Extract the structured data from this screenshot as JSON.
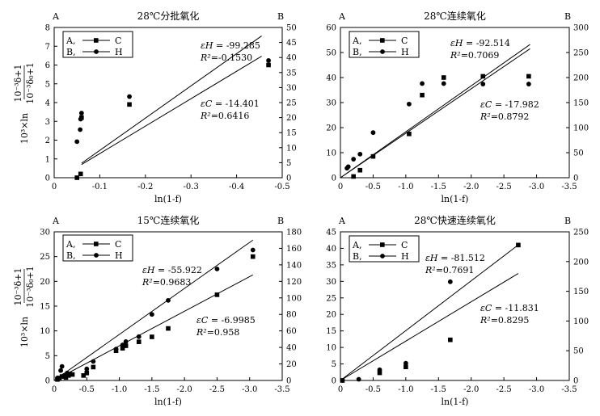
{
  "figure": {
    "ylabel_text_left": "10³×ln",
    "ylabel_frac_numerator": "10⁻³δ+1",
    "ylabel_frac_denominator": "10⁻³δ₀+1"
  },
  "chart_data": [
    {
      "type": "scatter",
      "title": "28℃分批氧化",
      "left_axis_label": "A",
      "right_axis_label": "B",
      "xlabel": "ln(1-f)",
      "x_range": [
        0,
        -0.5
      ],
      "x_ticks": [
        0,
        -0.1,
        -0.2,
        -0.3,
        -0.4,
        -0.5
      ],
      "x_tick_labels": [
        "0",
        "-0.1",
        "-0.2",
        "-0.3",
        "-0.4",
        "-0.5"
      ],
      "left_range": [
        0,
        8
      ],
      "left_ticks": [
        0,
        1,
        2,
        3,
        4,
        5,
        6,
        7,
        8
      ],
      "right_range": [
        0,
        50
      ],
      "right_ticks": [
        0,
        5,
        10,
        15,
        20,
        25,
        30,
        35,
        40,
        45,
        50
      ],
      "legend": [
        {
          "axis": "A",
          "symbol": "square",
          "label": "C",
          "prefix": "A,"
        },
        {
          "axis": "B",
          "symbol": "circle",
          "label": "H",
          "prefix": "B,"
        }
      ],
      "series": [
        {
          "name": "C",
          "axis": "left",
          "marker": "square",
          "x": [
            -0.05,
            -0.058,
            -0.06,
            -0.165,
            -0.47
          ],
          "y": [
            0.0,
            0.2,
            3.2,
            3.9,
            6.0
          ]
        },
        {
          "name": "H",
          "axis": "right",
          "marker": "circle",
          "x": [
            -0.05,
            -0.057,
            -0.058,
            -0.06,
            -0.165,
            -0.47
          ],
          "y": [
            12,
            16,
            19.5,
            21.5,
            27,
            39
          ]
        }
      ],
      "fits": [
        {
          "name": "H fit",
          "axis": "right",
          "x": [
            -0.06,
            -0.455
          ],
          "y": [
            4.8,
            47.2
          ]
        },
        {
          "name": "C fit",
          "axis": "left",
          "x": [
            -0.06,
            -0.455
          ],
          "y": [
            0.7,
            6.47
          ]
        }
      ],
      "annotations": [
        {
          "series": "H",
          "eps_symbol": "εH",
          "eps_value": "-99.285",
          "r2_label": "R²",
          "r2_value": "-0.1530"
        },
        {
          "series": "C",
          "eps_symbol": "εC",
          "eps_value": "-14.401",
          "r2_label": "R²",
          "r2_value": "0.6416"
        }
      ]
    },
    {
      "type": "scatter",
      "title": "28℃连续氧化",
      "left_axis_label": "A",
      "right_axis_label": "B",
      "xlabel": "ln(1-f)",
      "x_range": [
        0,
        -3.5
      ],
      "x_ticks": [
        0,
        -0.5,
        -1.0,
        -1.5,
        -2.0,
        -2.5,
        -3.0,
        -3.5
      ],
      "x_tick_labels": [
        "0",
        "-0.5",
        "-1.0",
        "-1.5",
        "-2.0",
        "-2.5",
        "-3.0",
        "-3.5"
      ],
      "left_range": [
        0,
        60
      ],
      "left_ticks": [
        0,
        10,
        20,
        30,
        40,
        50,
        60
      ],
      "right_range": [
        0,
        300
      ],
      "right_ticks": [
        0,
        50,
        100,
        150,
        200,
        250,
        300
      ],
      "legend": [
        {
          "axis": "A",
          "symbol": "square",
          "label": "C",
          "prefix": "A,"
        },
        {
          "axis": "B",
          "symbol": "circle",
          "label": "H",
          "prefix": "B,"
        }
      ],
      "series": [
        {
          "name": "C",
          "axis": "left",
          "marker": "square",
          "x": [
            -0.2,
            -0.3,
            -0.5,
            -1.05,
            -1.25,
            -1.58,
            -2.18,
            -2.88
          ],
          "y": [
            0.5,
            3,
            8.5,
            17.5,
            33,
            40,
            40.5,
            40.5
          ]
        },
        {
          "name": "H",
          "axis": "right",
          "marker": "circle",
          "x": [
            -0.1,
            -0.12,
            -0.2,
            -0.3,
            -0.5,
            -1.05,
            -1.25,
            -1.58,
            -2.18,
            -2.88
          ],
          "y": [
            19,
            22,
            37,
            47,
            90,
            147,
            188,
            188,
            187,
            187
          ]
        }
      ],
      "fits": [
        {
          "name": "H fit",
          "axis": "right",
          "x": [
            0.0,
            -2.9
          ],
          "y": [
            0,
            266
          ]
        },
        {
          "name": "C fit",
          "axis": "left",
          "x": [
            0.0,
            -2.9
          ],
          "y": [
            0,
            51.5
          ]
        }
      ],
      "annotations": [
        {
          "series": "H",
          "eps_symbol": "εH",
          "eps_value": "-92.514",
          "r2_label": "R²",
          "r2_value": "0.7069"
        },
        {
          "series": "C",
          "eps_symbol": "εC",
          "eps_value": "-17.982",
          "r2_label": "R²",
          "r2_value": "0.8792"
        }
      ]
    },
    {
      "type": "scatter",
      "title": "15℃连续氧化",
      "left_axis_label": "A",
      "right_axis_label": "B",
      "xlabel": "ln(1-f)",
      "x_range": [
        0,
        -3.5
      ],
      "x_ticks": [
        0,
        -0.5,
        -1.0,
        -1.5,
        -2.0,
        -2.5,
        -3.0,
        -3.5
      ],
      "x_tick_labels": [
        "0",
        "-0.5",
        "-1.0",
        "-1.5",
        "-2.0",
        "-2.5",
        "-3.0",
        "-3.5"
      ],
      "left_range": [
        0,
        30
      ],
      "left_ticks": [
        0,
        5,
        10,
        15,
        20,
        25,
        30
      ],
      "right_range": [
        0,
        180
      ],
      "right_ticks": [
        0,
        20,
        40,
        60,
        80,
        100,
        120,
        140,
        160,
        180
      ],
      "legend": [
        {
          "axis": "A",
          "symbol": "square",
          "label": "C",
          "prefix": "A,"
        },
        {
          "axis": "B",
          "symbol": "circle",
          "label": "H",
          "prefix": "B,"
        }
      ],
      "series": [
        {
          "name": "C",
          "axis": "left",
          "marker": "square",
          "x": [
            -0.05,
            -0.08,
            -0.12,
            -0.18,
            -0.22,
            -0.28,
            -0.45,
            -0.5,
            -0.6,
            -0.95,
            -1.05,
            -1.1,
            -1.3,
            -1.5,
            -1.75,
            -2.5,
            -3.05
          ],
          "y": [
            0.2,
            0.5,
            0.8,
            0.6,
            1.0,
            1.2,
            1.0,
            1.5,
            2.7,
            6.0,
            6.5,
            7.0,
            7.8,
            8.8,
            10.5,
            17.3,
            25.0
          ]
        },
        {
          "name": "H",
          "axis": "right",
          "marker": "circle",
          "x": [
            -0.05,
            -0.1,
            -0.12,
            -0.15,
            -0.2,
            -0.25,
            -0.5,
            -0.6,
            -0.95,
            -1.05,
            -1.1,
            -1.3,
            -1.5,
            -1.75,
            -2.5,
            -3.05
          ],
          "y": [
            3,
            12,
            17,
            6,
            9,
            8,
            14,
            23,
            38,
            43,
            47,
            53,
            80,
            97,
            135,
            158
          ]
        }
      ],
      "fits": [
        {
          "name": "H fit",
          "axis": "right",
          "x": [
            0.0,
            -3.05
          ],
          "y": [
            0,
            170
          ]
        },
        {
          "name": "C fit",
          "axis": "left",
          "x": [
            0.0,
            -3.05
          ],
          "y": [
            0,
            21.3
          ]
        }
      ],
      "annotations": [
        {
          "series": "H",
          "eps_symbol": "εH",
          "eps_value": "-55.922",
          "r2_label": "R²",
          "r2_value": "0.9683"
        },
        {
          "series": "C",
          "eps_symbol": "εC",
          "eps_value": "-6.9985",
          "r2_label": "R²",
          "r2_value": "0.958"
        }
      ]
    },
    {
      "type": "scatter",
      "title": "28℃快速连续氧化",
      "left_axis_label": "A",
      "right_axis_label": "B",
      "xlabel": "ln(1-f)",
      "x_range": [
        0,
        -3.5
      ],
      "x_ticks": [
        0,
        -0.5,
        -1.0,
        -1.5,
        -2.0,
        -2.5,
        -3.0,
        -3.5
      ],
      "x_tick_labels": [
        "0",
        "-0.5",
        "-1.0",
        "-1.5",
        "-2.0",
        "-2.5",
        "-3.0",
        "-3.5"
      ],
      "left_range": [
        0,
        45
      ],
      "left_ticks": [
        0,
        5,
        10,
        15,
        20,
        25,
        30,
        35,
        40,
        45
      ],
      "right_range": [
        0,
        250
      ],
      "right_ticks": [
        0,
        50,
        100,
        150,
        200,
        250
      ],
      "legend": [
        {
          "axis": "A",
          "symbol": "square",
          "label": "C",
          "prefix": "A,"
        },
        {
          "axis": "B",
          "symbol": "circle",
          "label": "H",
          "prefix": "B,"
        }
      ],
      "series": [
        {
          "name": "C",
          "axis": "left",
          "marker": "square",
          "x": [
            -0.03,
            -0.6,
            -1.0,
            -1.68,
            -2.72
          ],
          "y": [
            0.0,
            2.3,
            4.1,
            12.3,
            41.0
          ]
        },
        {
          "name": "H",
          "axis": "right",
          "marker": "circle",
          "x": [
            -0.03,
            -0.28,
            -0.6,
            -1.0,
            -1.68
          ],
          "y": [
            0,
            2,
            18,
            29,
            166
          ]
        }
      ],
      "fits": [
        {
          "name": "H fit",
          "axis": "right",
          "x": [
            0.0,
            -2.72
          ],
          "y": [
            0,
            228
          ]
        },
        {
          "name": "C fit",
          "axis": "left",
          "x": [
            0.0,
            -2.72
          ],
          "y": [
            0,
            32.4
          ]
        }
      ],
      "annotations": [
        {
          "series": "H",
          "eps_symbol": "εH",
          "eps_value": "-81.512",
          "r2_label": "R²",
          "r2_value": "0.7691"
        },
        {
          "series": "C",
          "eps_symbol": "εC",
          "eps_value": "-11.831",
          "r2_label": "R²",
          "r2_value": "0.8295"
        }
      ]
    }
  ]
}
